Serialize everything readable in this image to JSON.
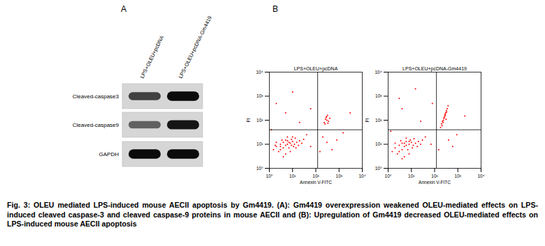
{
  "panel_labels": [
    "A",
    "B"
  ],
  "western_blot": {
    "lanes": [
      "LPS+OLEU+pcDNA",
      "LPS+OLEU+pcDNA-Gm4419"
    ],
    "rows": [
      {
        "name": "Cleaved-caspase3",
        "band_intensity": [
          0.7,
          0.95
        ]
      },
      {
        "name": "Cleaved-caspase9",
        "band_intensity": [
          0.55,
          0.9
        ]
      },
      {
        "name": "GAPDH",
        "band_intensity": [
          0.95,
          0.95
        ]
      }
    ]
  },
  "chart_data": [
    {
      "type": "scatter",
      "title": "LPS+OLEU+pcDNA",
      "x_label": "Annexin V-FITC",
      "y_label": "PI",
      "log": true,
      "color": "#ff0000",
      "xlim": [
        1,
        10000
      ],
      "ylim": [
        1,
        10000
      ],
      "xticks": [
        {
          "value": 1,
          "label": "10⁰"
        },
        {
          "value": 10,
          "label": "10¹"
        },
        {
          "value": 100,
          "label": "10²"
        },
        {
          "value": 1000,
          "label": "10³"
        },
        {
          "value": 10000,
          "label": "10⁴"
        }
      ],
      "yticks": [
        {
          "value": 1,
          "label": "10⁰"
        },
        {
          "value": 10,
          "label": "10¹"
        },
        {
          "value": 100,
          "label": "10²"
        },
        {
          "value": 1000,
          "label": "10³"
        },
        {
          "value": 10000,
          "label": "10⁴"
        }
      ],
      "gates": {
        "x": 120,
        "y": 40
      },
      "points": [
        [
          2,
          8
        ],
        [
          3,
          10
        ],
        [
          4,
          12
        ],
        [
          5,
          9
        ],
        [
          6,
          14
        ],
        [
          8,
          11
        ],
        [
          10,
          13
        ],
        [
          12,
          10
        ],
        [
          15,
          12
        ],
        [
          3,
          6
        ],
        [
          2.5,
          5
        ],
        [
          4,
          7
        ],
        [
          7,
          7
        ],
        [
          9,
          16
        ],
        [
          11,
          8
        ],
        [
          6,
          20
        ],
        [
          5,
          4
        ],
        [
          1.5,
          6
        ],
        [
          3.5,
          15
        ],
        [
          20,
          14
        ],
        [
          18,
          9
        ],
        [
          8,
          5
        ],
        [
          13,
          18
        ],
        [
          25,
          11
        ],
        [
          2,
          12
        ],
        [
          30,
          16
        ],
        [
          4,
          3
        ],
        [
          1.8,
          9
        ],
        [
          6,
          10
        ],
        [
          7,
          12
        ],
        [
          9,
          9
        ],
        [
          5,
          15
        ],
        [
          3,
          8
        ],
        [
          14,
          7
        ],
        [
          10,
          20
        ],
        [
          40,
          25
        ],
        [
          60,
          8
        ],
        [
          150,
          5
        ],
        [
          300,
          12
        ],
        [
          1.2,
          40
        ],
        [
          250,
          70
        ],
        [
          300,
          100
        ],
        [
          280,
          130
        ],
        [
          350,
          90
        ],
        [
          320,
          160
        ],
        [
          260,
          110
        ],
        [
          400,
          120
        ],
        [
          230,
          80
        ],
        [
          330,
          75
        ],
        [
          290,
          140
        ],
        [
          5,
          200
        ],
        [
          20,
          80
        ],
        [
          2,
          500
        ],
        [
          10,
          1500
        ],
        [
          60,
          300
        ],
        [
          500,
          6
        ],
        [
          800,
          15
        ],
        [
          200,
          20
        ],
        [
          1500,
          30
        ],
        [
          3000,
          200
        ]
      ]
    },
    {
      "type": "scatter",
      "title": "LPS+OLEU+pcDNA-Gm4419",
      "x_label": "Annexin V-FITC",
      "y_label": "PI",
      "log": true,
      "color": "#ff0000",
      "xlim": [
        1,
        10000
      ],
      "ylim": [
        1,
        10000
      ],
      "xticks": [
        {
          "value": 1,
          "label": "10⁰"
        },
        {
          "value": 10,
          "label": "10¹"
        },
        {
          "value": 100,
          "label": "10²"
        },
        {
          "value": 1000,
          "label": "10³"
        },
        {
          "value": 10000,
          "label": "10⁴"
        }
      ],
      "yticks": [
        {
          "value": 1,
          "label": "10⁰"
        },
        {
          "value": 10,
          "label": "10¹"
        },
        {
          "value": 100,
          "label": "10²"
        },
        {
          "value": 1000,
          "label": "10³"
        },
        {
          "value": 10000,
          "label": "10⁴"
        }
      ],
      "gates": {
        "x": 120,
        "y": 40
      },
      "points": [
        [
          2,
          7
        ],
        [
          3,
          9
        ],
        [
          4,
          11
        ],
        [
          5,
          8
        ],
        [
          6,
          13
        ],
        [
          8,
          10
        ],
        [
          10,
          12
        ],
        [
          12,
          9
        ],
        [
          15,
          11
        ],
        [
          3,
          5
        ],
        [
          2.5,
          4
        ],
        [
          4,
          6
        ],
        [
          7,
          6
        ],
        [
          9,
          15
        ],
        [
          11,
          7
        ],
        [
          6,
          18
        ],
        [
          5,
          3
        ],
        [
          1.5,
          5
        ],
        [
          3.5,
          14
        ],
        [
          20,
          13
        ],
        [
          18,
          8
        ],
        [
          8,
          4
        ],
        [
          13,
          17
        ],
        [
          25,
          10
        ],
        [
          2,
          11
        ],
        [
          30,
          15
        ],
        [
          4,
          2.5
        ],
        [
          6,
          9
        ],
        [
          8,
          13
        ],
        [
          5,
          11
        ],
        [
          40,
          20
        ],
        [
          70,
          10
        ],
        [
          150,
          6
        ],
        [
          400,
          15
        ],
        [
          1.3,
          35
        ],
        [
          180,
          50
        ],
        [
          200,
          70
        ],
        [
          220,
          90
        ],
        [
          250,
          120
        ],
        [
          270,
          150
        ],
        [
          300,
          200
        ],
        [
          320,
          250
        ],
        [
          350,
          300
        ],
        [
          240,
          100
        ],
        [
          210,
          60
        ],
        [
          280,
          180
        ],
        [
          260,
          130
        ],
        [
          330,
          220
        ],
        [
          230,
          80
        ],
        [
          290,
          160
        ],
        [
          380,
          400
        ],
        [
          310,
          110
        ],
        [
          4,
          300
        ],
        [
          25,
          90
        ],
        [
          3,
          800
        ],
        [
          15,
          2000
        ],
        [
          80,
          500
        ],
        [
          600,
          8
        ],
        [
          900,
          25
        ],
        [
          2000,
          150
        ]
      ]
    }
  ],
  "caption": "Fig. 3: OLEU mediated LPS-induced mouse AECII apoptosis by Gm4419. (A): Gm4419 overexpression weakened OLEU-mediated effects on LPS-induced cleaved caspase-3 and cleaved caspase-9 proteins in mouse AECII and (B): Upregulation of Gm4419 decreased OLEU-mediated effects on LPS-induced mouse AECII apoptosis"
}
